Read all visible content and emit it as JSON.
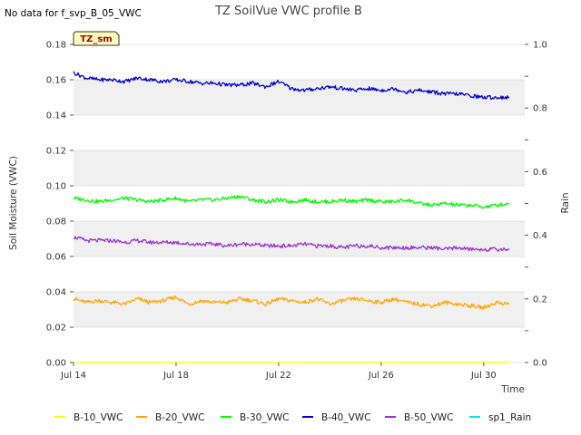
{
  "no_data_note": "No data for f_svp_B_05_VWC",
  "site_badge": "TZ_sm",
  "chart_data": {
    "type": "line",
    "title": "TZ SoilVue VWC profile B",
    "xlabel": "Time",
    "ylabel": "Soil Moisture (VWC)",
    "y2label": "Rain",
    "x_range_days": [
      14,
      31.6
    ],
    "ylim": [
      0,
      0.18
    ],
    "y2lim": [
      0,
      1.0
    ],
    "x_ticks": [
      {
        "day": 14,
        "label": "Jul 14"
      },
      {
        "day": 18,
        "label": "Jul 18"
      },
      {
        "day": 22,
        "label": "Jul 22"
      },
      {
        "day": 26,
        "label": "Jul 26"
      },
      {
        "day": 30,
        "label": "Jul 30"
      }
    ],
    "y_ticks": [
      {
        "value": 0.0,
        "label": "0.00"
      },
      {
        "value": 0.02,
        "label": "0.02"
      },
      {
        "value": 0.04,
        "label": "0.04"
      },
      {
        "value": 0.06,
        "label": "0.06"
      },
      {
        "value": 0.08,
        "label": "0.08"
      },
      {
        "value": 0.1,
        "label": "0.10"
      },
      {
        "value": 0.12,
        "label": "0.12"
      },
      {
        "value": 0.14,
        "label": "0.14"
      },
      {
        "value": 0.16,
        "label": "0.16"
      },
      {
        "value": 0.18,
        "label": "0.18"
      }
    ],
    "y2_ticks": [
      {
        "value": 0.0,
        "label": "0.0"
      },
      {
        "value": 0.1,
        "label": ""
      },
      {
        "value": 0.2,
        "label": "0.2"
      },
      {
        "value": 0.3,
        "label": ""
      },
      {
        "value": 0.4,
        "label": "0.4"
      },
      {
        "value": 0.5,
        "label": ""
      },
      {
        "value": 0.6,
        "label": "0.6"
      },
      {
        "value": 0.7,
        "label": ""
      },
      {
        "value": 0.8,
        "label": "0.8"
      },
      {
        "value": 0.9,
        "label": ""
      },
      {
        "value": 1.0,
        "label": "1.0"
      }
    ],
    "x_days": [
      14.0,
      14.5,
      15.0,
      15.5,
      16.0,
      16.5,
      17.0,
      17.5,
      18.0,
      18.5,
      19.0,
      19.5,
      20.0,
      20.5,
      21.0,
      21.5,
      22.0,
      22.5,
      23.0,
      23.5,
      24.0,
      24.5,
      25.0,
      25.5,
      26.0,
      26.5,
      27.0,
      27.5,
      28.0,
      28.5,
      29.0,
      29.5,
      30.0,
      30.5,
      31.0
    ],
    "series": [
      {
        "name": "B-10_VWC",
        "color": "#ffff00",
        "axis": "left",
        "values": [
          0.0,
          0.0,
          0.0,
          0.0,
          0.0,
          0.0,
          0.0,
          0.0,
          0.0,
          0.0,
          0.0,
          0.0,
          0.0,
          0.0,
          0.0,
          0.0,
          0.0,
          0.0,
          0.0,
          0.0,
          0.0,
          0.0,
          0.0,
          0.0,
          0.0,
          0.0,
          0.0,
          0.0,
          0.0,
          0.0,
          0.0,
          0.0,
          0.0,
          0.0,
          0.0
        ]
      },
      {
        "name": "B-20_VWC",
        "color": "#ffa500",
        "axis": "left",
        "values": [
          0.036,
          0.034,
          0.035,
          0.034,
          0.033,
          0.036,
          0.034,
          0.035,
          0.037,
          0.033,
          0.035,
          0.034,
          0.034,
          0.036,
          0.035,
          0.033,
          0.036,
          0.035,
          0.034,
          0.036,
          0.033,
          0.035,
          0.036,
          0.035,
          0.034,
          0.036,
          0.034,
          0.033,
          0.032,
          0.034,
          0.033,
          0.032,
          0.031,
          0.034,
          0.033
        ]
      },
      {
        "name": "B-30_VWC",
        "color": "#00ff00",
        "axis": "left",
        "values": [
          0.093,
          0.092,
          0.091,
          0.092,
          0.093,
          0.092,
          0.091,
          0.092,
          0.093,
          0.091,
          0.092,
          0.092,
          0.093,
          0.094,
          0.092,
          0.091,
          0.092,
          0.091,
          0.092,
          0.091,
          0.091,
          0.092,
          0.091,
          0.092,
          0.091,
          0.091,
          0.092,
          0.09,
          0.089,
          0.09,
          0.089,
          0.089,
          0.088,
          0.089,
          0.09
        ]
      },
      {
        "name": "B-40_VWC",
        "color": "#0000cc",
        "axis": "left",
        "values": [
          0.164,
          0.161,
          0.16,
          0.16,
          0.159,
          0.161,
          0.16,
          0.159,
          0.16,
          0.159,
          0.158,
          0.158,
          0.157,
          0.157,
          0.158,
          0.156,
          0.159,
          0.155,
          0.154,
          0.155,
          0.156,
          0.155,
          0.154,
          0.155,
          0.154,
          0.155,
          0.153,
          0.154,
          0.153,
          0.152,
          0.152,
          0.151,
          0.15,
          0.15,
          0.15
        ]
      },
      {
        "name": "B-50_VWC",
        "color": "#9933cc",
        "axis": "left",
        "values": [
          0.071,
          0.069,
          0.069,
          0.069,
          0.068,
          0.069,
          0.068,
          0.068,
          0.068,
          0.067,
          0.067,
          0.067,
          0.066,
          0.067,
          0.067,
          0.066,
          0.066,
          0.066,
          0.067,
          0.066,
          0.066,
          0.065,
          0.066,
          0.066,
          0.065,
          0.065,
          0.065,
          0.065,
          0.065,
          0.064,
          0.065,
          0.064,
          0.064,
          0.064,
          0.064
        ]
      },
      {
        "name": "sp1_Rain",
        "color": "#00e5ee",
        "axis": "right",
        "values": []
      }
    ]
  }
}
